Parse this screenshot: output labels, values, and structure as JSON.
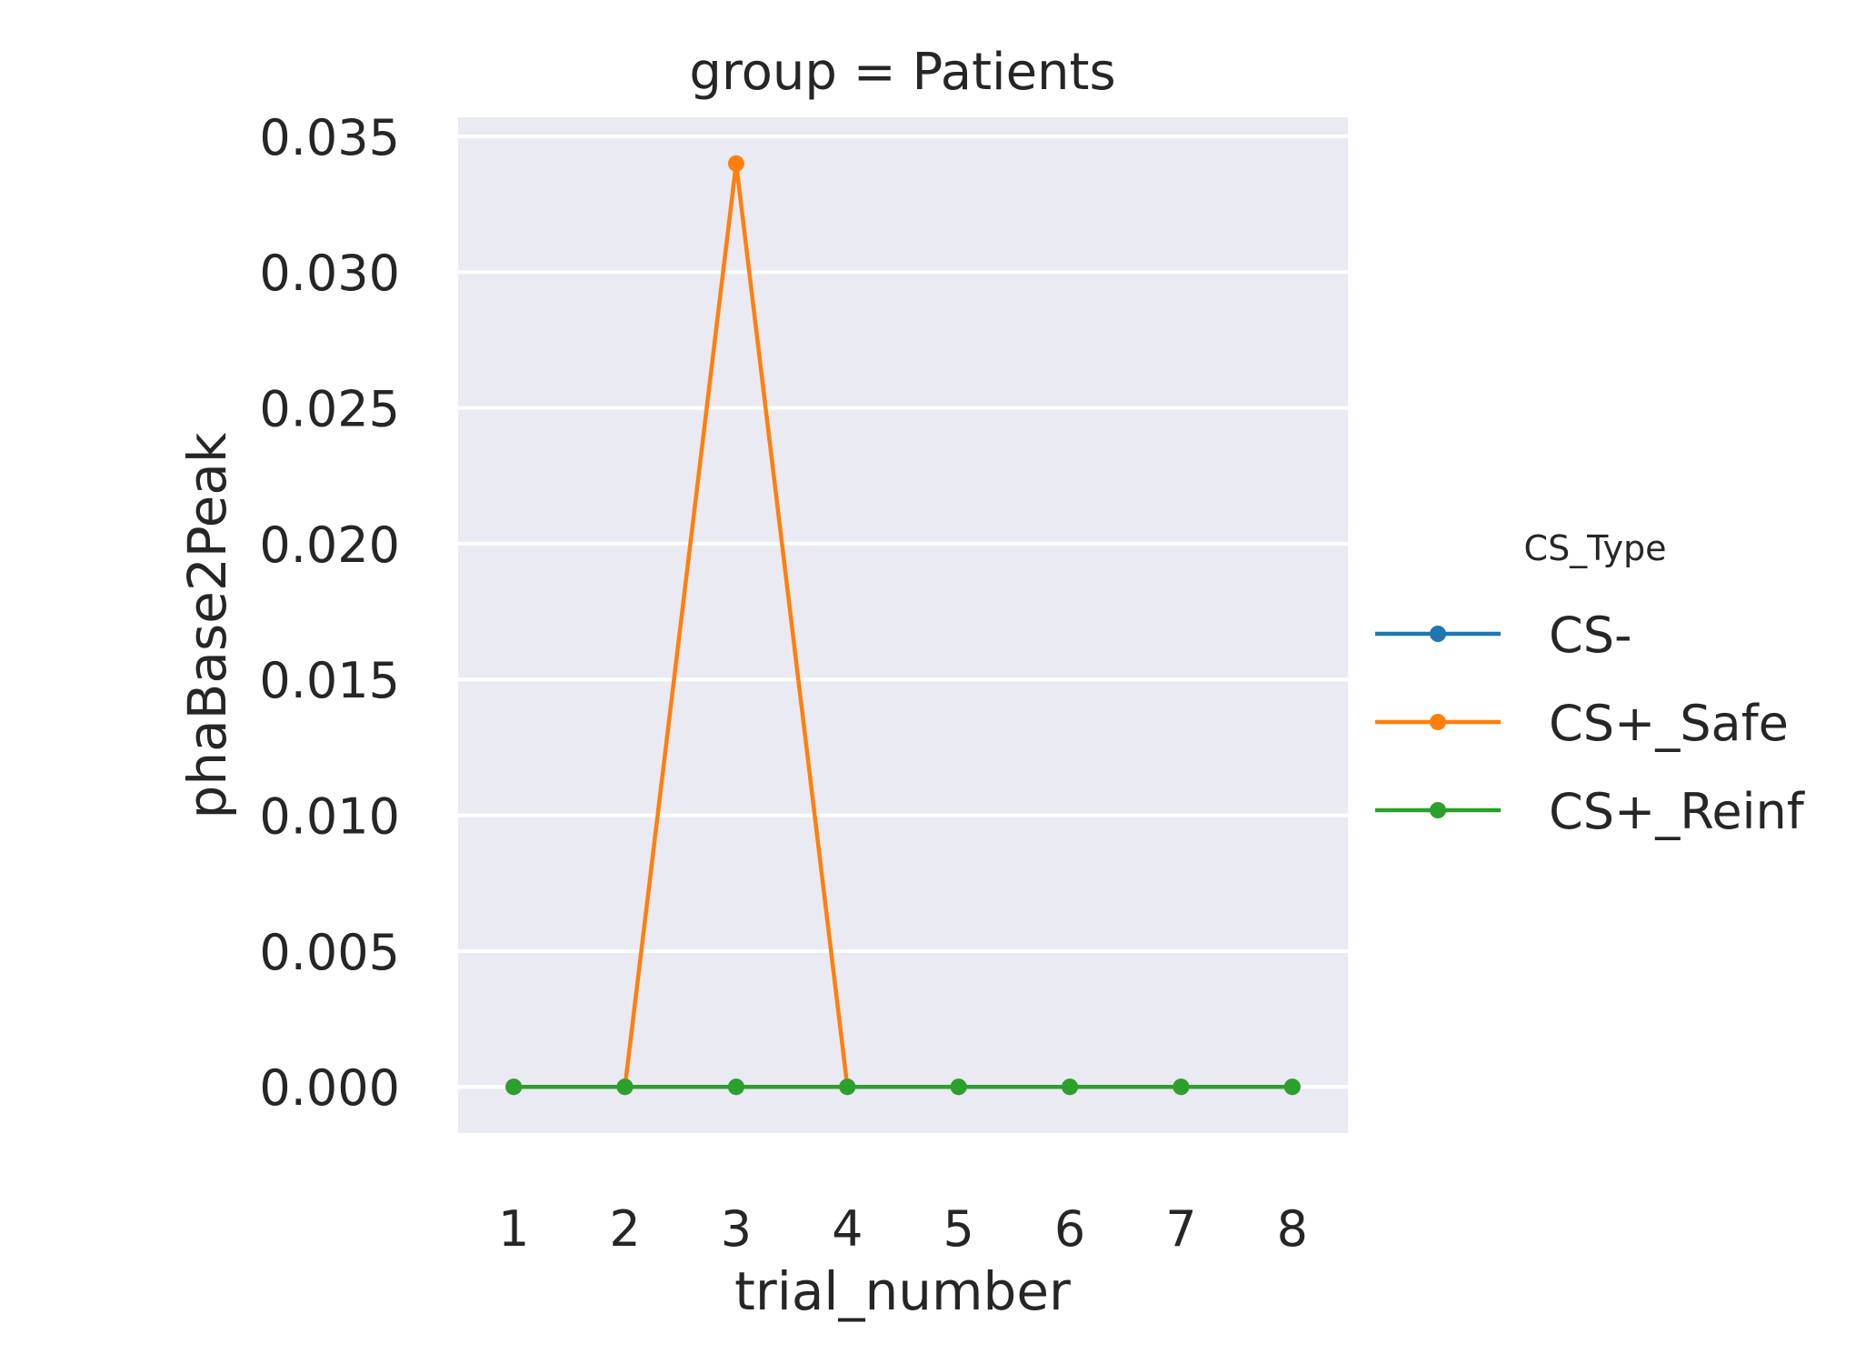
{
  "chart_data": {
    "type": "line",
    "title": "group = Patients",
    "xlabel": "trial_number",
    "ylabel": "phaBase2Peak",
    "x": [
      1,
      2,
      3,
      4,
      5,
      6,
      7,
      8
    ],
    "x_tick_labels": [
      "1",
      "2",
      "3",
      "4",
      "5",
      "6",
      "7",
      "8"
    ],
    "y_ticks": [
      0.0,
      0.005,
      0.01,
      0.015,
      0.02,
      0.025,
      0.03,
      0.035
    ],
    "y_tick_labels": [
      "0.000",
      "0.005",
      "0.010",
      "0.015",
      "0.020",
      "0.025",
      "0.030",
      "0.035"
    ],
    "ylim": [
      -0.0017,
      0.0357
    ],
    "xlim": [
      0.5,
      8.5
    ],
    "grid": true,
    "legend": {
      "title": "CS_Type",
      "placement": "center-right"
    },
    "series": [
      {
        "name": "CS-",
        "color": "#1f77b4",
        "values": [
          0,
          0,
          0,
          0,
          0,
          0,
          0,
          0
        ]
      },
      {
        "name": "CS+_Safe",
        "color": "#ff7f0e",
        "values": [
          0,
          0,
          0.034,
          0,
          0,
          0,
          0,
          0
        ]
      },
      {
        "name": "CS+_Reinf",
        "color": "#2ca02c",
        "values": [
          0,
          0,
          0,
          0,
          0,
          0,
          0,
          0
        ]
      }
    ]
  },
  "colors": {
    "plot_background": "#eaeaf2",
    "grid": "#ffffff",
    "text": "#262626"
  }
}
